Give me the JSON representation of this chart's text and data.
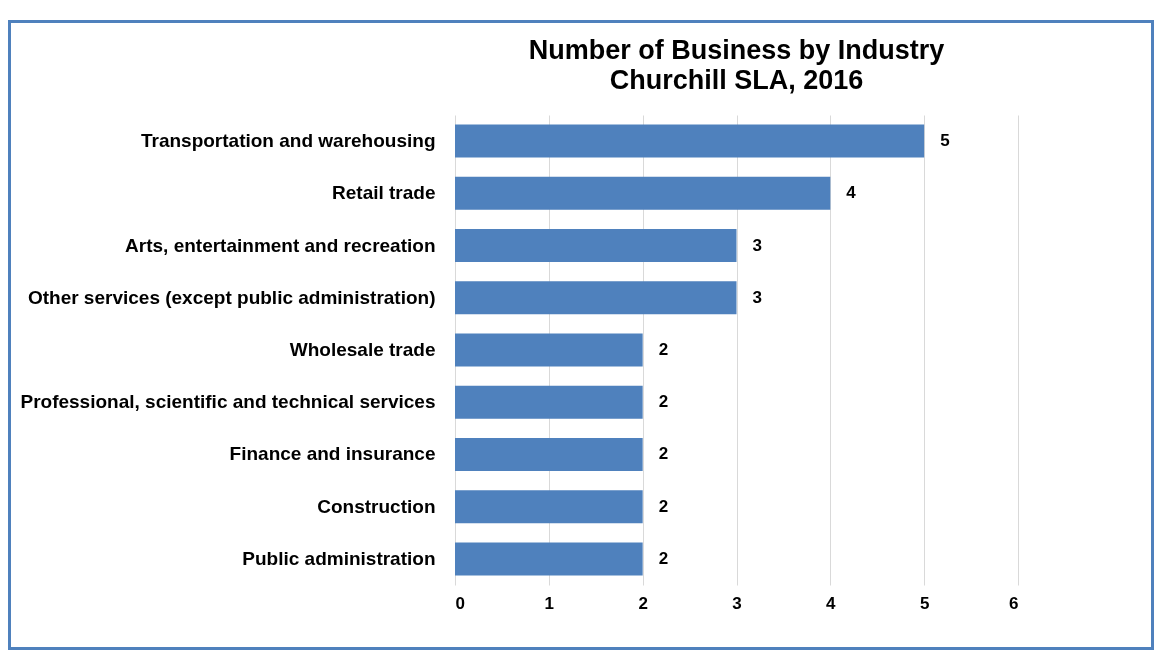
{
  "chart_data": {
    "type": "bar",
    "orientation": "horizontal",
    "title": "Number of Business by Industry",
    "subtitle": "Churchill SLA, 2016",
    "categories": [
      "Transportation and warehousing",
      "Retail trade",
      "Arts, entertainment and recreation",
      "Other services (except public administration)",
      "Wholesale trade",
      "Professional, scientific and technical services",
      "Finance and insurance",
      "Construction",
      "Public administration"
    ],
    "values": [
      5,
      4,
      3,
      3,
      2,
      2,
      2,
      2,
      2
    ],
    "color": "#4f81bd",
    "xlim": [
      0,
      6
    ],
    "xticks": [
      {
        "value": 0,
        "label": "0"
      },
      {
        "value": 1,
        "label": "1"
      },
      {
        "value": 2,
        "label": "2"
      },
      {
        "value": 3,
        "label": "3"
      },
      {
        "value": 4,
        "label": "4"
      },
      {
        "value": 5,
        "label": "5"
      },
      {
        "value": 6,
        "label": "6"
      }
    ],
    "grid": "x",
    "data_labels": true
  }
}
